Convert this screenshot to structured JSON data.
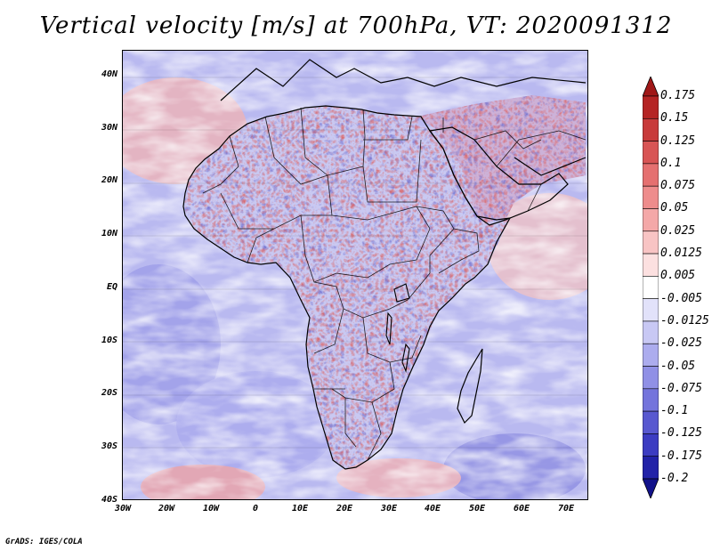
{
  "title": "Vertical velocity [m/s] at 700hPa, VT: 2020091312",
  "footer": "GrADS: IGES/COLA",
  "map": {
    "region": "Africa and Middle East",
    "lon_range": [
      -30,
      75
    ],
    "lat_range": [
      -40,
      45
    ],
    "lat_ticks": [
      "40N",
      "30N",
      "20N",
      "10N",
      "EQ",
      "10S",
      "20S",
      "30S",
      "40S"
    ],
    "lon_ticks": [
      "30W",
      "20W",
      "10W",
      "0",
      "10E",
      "20E",
      "30E",
      "40E",
      "50E",
      "60E",
      "70E"
    ]
  },
  "colorbar": {
    "levels": [
      "0.175",
      "0.15",
      "0.125",
      "0.1",
      "0.075",
      "0.05",
      "0.025",
      "0.0125",
      "0.005",
      "-0.005",
      "-0.0125",
      "-0.025",
      "-0.05",
      "-0.075",
      "-0.1",
      "-0.125",
      "-0.175",
      "-0.2"
    ],
    "colors": [
      "#a01818",
      "#b52424",
      "#c83a3a",
      "#d85454",
      "#e57070",
      "#ee8c8c",
      "#f4a8a8",
      "#f8c4c4",
      "#fce0e0",
      "#ffffff",
      "#e2e2fa",
      "#c8c8f4",
      "#acacee",
      "#9090e6",
      "#7474dc",
      "#5858d0",
      "#3c3cc2",
      "#2222a8",
      "#12128a"
    ]
  },
  "legend": {
    "orientation": "vertical",
    "position": "right"
  }
}
